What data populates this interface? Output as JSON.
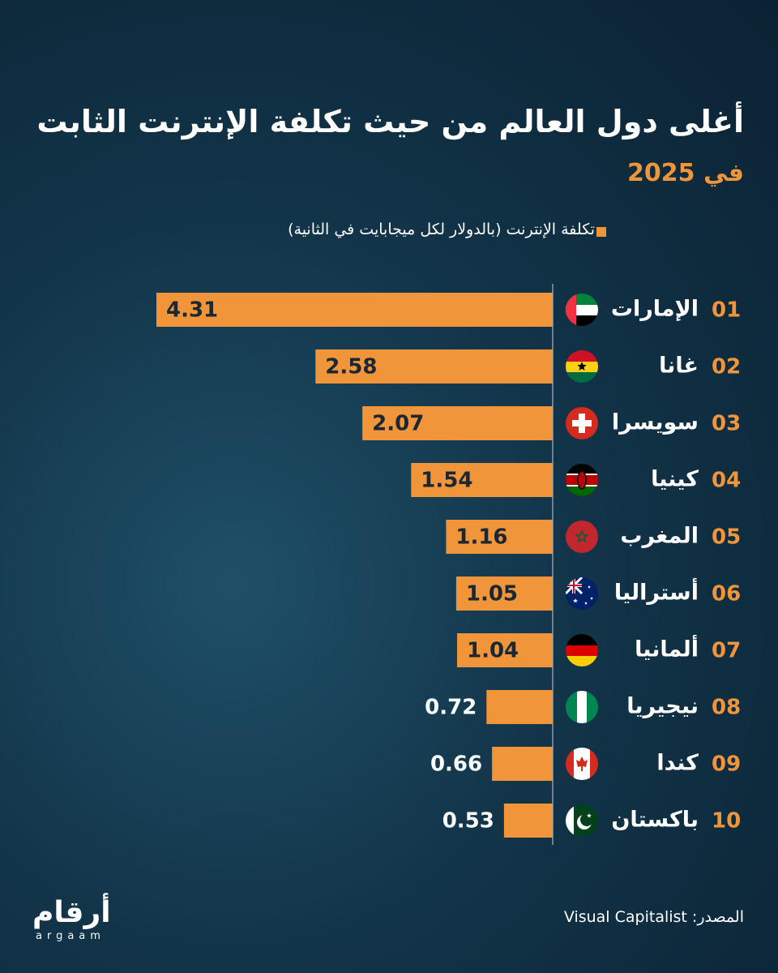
{
  "chart_data": {
    "type": "bar",
    "orientation": "horizontal",
    "title": "أغلى دول العالم من حيث تكلفة الإنترنت الثابت",
    "subtitle": "في 2025",
    "legend": "تكلفة الإنترنت (بالدولار لكل ميجابايت في الثانية)",
    "ranks": [
      "01",
      "02",
      "03",
      "04",
      "05",
      "06",
      "07",
      "08",
      "09",
      "10"
    ],
    "categories": [
      "الإمارات",
      "غانا",
      "سويسرا",
      "كينيا",
      "المغرب",
      "أستراليا",
      "ألمانيا",
      "نيجيريا",
      "كندا",
      "باكستان"
    ],
    "values": [
      4.31,
      2.58,
      2.07,
      1.54,
      1.16,
      1.05,
      1.04,
      0.72,
      0.66,
      0.53
    ],
    "color": "#f0953a"
  },
  "source": "المصدر: Visual Capitalist",
  "logo": {
    "arabic": "أرقام",
    "latin": "argaam"
  }
}
